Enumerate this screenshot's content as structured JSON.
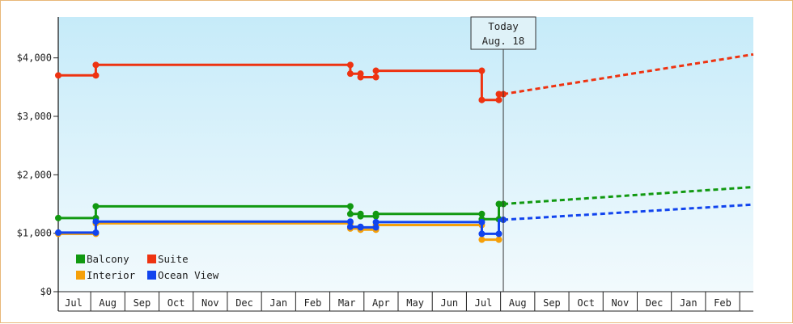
{
  "chart_data": {
    "type": "line",
    "title": "",
    "xlabel": "",
    "ylabel": "",
    "ylim": [
      0,
      4700
    ],
    "y_ticks": [
      {
        "value": 0,
        "label": "$0"
      },
      {
        "value": 1000,
        "label": "$1,000"
      },
      {
        "value": 2000,
        "label": "$2,000"
      },
      {
        "value": 3000,
        "label": "$3,000"
      },
      {
        "value": 4000,
        "label": "$4,000"
      }
    ],
    "x_months": [
      "Jul",
      "Aug",
      "Sep",
      "Oct",
      "Nov",
      "Dec",
      "Jan",
      "Feb",
      "Mar",
      "Apr",
      "May",
      "Jun",
      "Jul",
      "Aug",
      "Sep",
      "Oct",
      "Nov",
      "Dec",
      "Jan",
      "Feb"
    ],
    "x_range_months": [
      -0.45,
      19.9
    ],
    "today": {
      "line1": "Today",
      "line2": "Aug. 18",
      "x": 12.58
    },
    "series": [
      {
        "name": "Suite",
        "color": "#ee3311",
        "points": [
          [
            -0.45,
            3700
          ],
          [
            0.65,
            3700
          ],
          [
            0.65,
            3880
          ],
          [
            8.1,
            3880
          ],
          [
            8.1,
            3730
          ],
          [
            8.4,
            3730
          ],
          [
            8.4,
            3670
          ],
          [
            8.85,
            3670
          ],
          [
            8.85,
            3780
          ],
          [
            11.95,
            3780
          ],
          [
            11.95,
            3280
          ],
          [
            12.45,
            3280
          ],
          [
            12.45,
            3380
          ],
          [
            12.58,
            3380
          ]
        ],
        "markers": [
          [
            -0.45,
            3700
          ],
          [
            0.65,
            3700
          ],
          [
            0.65,
            3880
          ],
          [
            8.1,
            3880
          ],
          [
            8.1,
            3730
          ],
          [
            8.4,
            3730
          ],
          [
            8.4,
            3670
          ],
          [
            8.85,
            3670
          ],
          [
            8.85,
            3780
          ],
          [
            11.95,
            3780
          ],
          [
            11.95,
            3280
          ],
          [
            12.45,
            3280
          ],
          [
            12.45,
            3380
          ],
          [
            12.58,
            3380
          ]
        ],
        "forecast": [
          [
            12.58,
            3380
          ],
          [
            19.9,
            4060
          ]
        ]
      },
      {
        "name": "Balcony",
        "color": "#119911",
        "points": [
          [
            -0.45,
            1260
          ],
          [
            0.65,
            1260
          ],
          [
            0.65,
            1460
          ],
          [
            8.1,
            1460
          ],
          [
            8.1,
            1330
          ],
          [
            8.4,
            1330
          ],
          [
            8.4,
            1290
          ],
          [
            8.85,
            1290
          ],
          [
            8.85,
            1330
          ],
          [
            11.95,
            1330
          ],
          [
            11.95,
            1240
          ],
          [
            12.45,
            1240
          ],
          [
            12.45,
            1500
          ],
          [
            12.58,
            1500
          ]
        ],
        "markers": [
          [
            -0.45,
            1260
          ],
          [
            0.65,
            1260
          ],
          [
            0.65,
            1460
          ],
          [
            8.1,
            1460
          ],
          [
            8.1,
            1330
          ],
          [
            8.4,
            1330
          ],
          [
            8.4,
            1290
          ],
          [
            8.85,
            1290
          ],
          [
            8.85,
            1330
          ],
          [
            11.95,
            1330
          ],
          [
            11.95,
            1240
          ],
          [
            12.45,
            1240
          ],
          [
            12.45,
            1500
          ],
          [
            12.58,
            1500
          ]
        ],
        "forecast": [
          [
            12.58,
            1500
          ],
          [
            19.9,
            1790
          ]
        ]
      },
      {
        "name": "Interior",
        "color": "#f5a00a",
        "points": [
          [
            -0.45,
            990
          ],
          [
            0.65,
            990
          ],
          [
            0.65,
            1170
          ],
          [
            8.1,
            1170
          ],
          [
            8.1,
            1080
          ],
          [
            8.4,
            1080
          ],
          [
            8.4,
            1060
          ],
          [
            8.85,
            1060
          ],
          [
            8.85,
            1140
          ],
          [
            11.95,
            1140
          ],
          [
            11.95,
            890
          ],
          [
            12.45,
            890
          ]
        ],
        "markers": [
          [
            -0.45,
            990
          ],
          [
            0.65,
            990
          ],
          [
            0.65,
            1170
          ],
          [
            8.1,
            1170
          ],
          [
            8.1,
            1080
          ],
          [
            8.4,
            1080
          ],
          [
            8.4,
            1060
          ],
          [
            8.85,
            1060
          ],
          [
            8.85,
            1140
          ],
          [
            11.95,
            1140
          ],
          [
            11.95,
            890
          ],
          [
            12.45,
            890
          ]
        ],
        "forecast": []
      },
      {
        "name": "Ocean View",
        "color": "#1144ee",
        "points": [
          [
            -0.45,
            1010
          ],
          [
            0.65,
            1010
          ],
          [
            0.65,
            1200
          ],
          [
            8.1,
            1200
          ],
          [
            8.1,
            1110
          ],
          [
            8.4,
            1110
          ],
          [
            8.4,
            1100
          ],
          [
            8.85,
            1100
          ],
          [
            8.85,
            1190
          ],
          [
            11.95,
            1190
          ],
          [
            11.95,
            990
          ],
          [
            12.45,
            990
          ],
          [
            12.45,
            1230
          ],
          [
            12.58,
            1230
          ]
        ],
        "markers": [
          [
            -0.45,
            1010
          ],
          [
            0.65,
            1010
          ],
          [
            0.65,
            1200
          ],
          [
            8.1,
            1200
          ],
          [
            8.1,
            1110
          ],
          [
            8.4,
            1110
          ],
          [
            8.4,
            1100
          ],
          [
            8.85,
            1100
          ],
          [
            8.85,
            1190
          ],
          [
            11.95,
            1190
          ],
          [
            11.95,
            990
          ],
          [
            12.45,
            990
          ],
          [
            12.58,
            1230
          ]
        ],
        "forecast": [
          [
            12.58,
            1230
          ],
          [
            19.9,
            1490
          ]
        ]
      }
    ],
    "legend": {
      "placement": "bottom-left",
      "items": [
        {
          "name": "Balcony",
          "color": "#119911"
        },
        {
          "name": "Suite",
          "color": "#ee3311"
        },
        {
          "name": "Interior",
          "color": "#f5a00a"
        },
        {
          "name": "Ocean View",
          "color": "#1144ee"
        }
      ]
    },
    "background_gradient": [
      "#c6ebf9",
      "#f2fafd"
    ]
  }
}
